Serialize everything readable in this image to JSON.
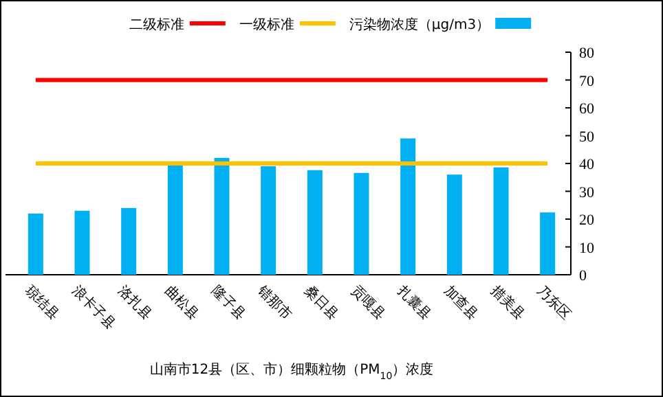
{
  "chart_data": {
    "type": "bar",
    "xlabel": "山南市12县（区、市）细颗粒物（PM$_{10}$）浓度",
    "categories": [
      "琼结县",
      "浪卡子县",
      "洛扎县",
      "曲松县",
      "隆子县",
      "错那市",
      "桑日县",
      "贡嘎县",
      "扎囊县",
      "加查县",
      "措美县",
      "乃东区"
    ],
    "series": [
      {
        "name": "二级标准",
        "type": "line",
        "color": "#ff0000",
        "values": [
          70,
          70,
          70,
          70,
          70,
          70,
          70,
          70,
          70,
          70,
          70,
          70
        ]
      },
      {
        "name": "一级标准",
        "type": "line",
        "color": "#ffc000",
        "values": [
          40,
          40,
          40,
          40,
          40,
          40,
          40,
          40,
          40,
          40,
          40,
          40
        ]
      },
      {
        "name": "污染物浓度（μg/m3）",
        "color": "#00b0f0",
        "values": [
          22,
          23,
          24,
          40,
          42,
          39,
          37.6,
          36.6,
          49,
          36,
          38.6,
          22.4
        ]
      }
    ],
    "ylim": [
      0,
      80
    ],
    "yticks": [
      0,
      10,
      20,
      30,
      40,
      50,
      60,
      70,
      80
    ],
    "legend": "top",
    "grid": false
  }
}
